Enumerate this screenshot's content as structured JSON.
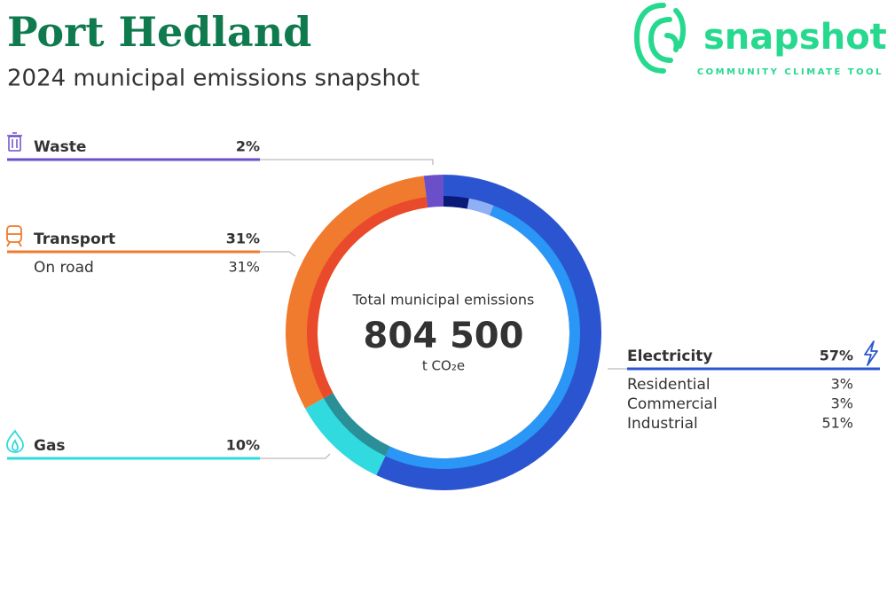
{
  "chart_data": {
    "type": "donut",
    "title": "Port Hedland",
    "subtitle": "2024 municipal emissions snapshot",
    "logo": {
      "name": "snapshot",
      "tagline": "COMMUNITY CLIMATE TOOL"
    },
    "center_label": "Total municipal emissions",
    "total": 804500,
    "total_label": "804 500",
    "unit": "t CO₂e",
    "segments": [
      {
        "name": "Electricity",
        "value": 57,
        "value_label": "57%",
        "color": "#2b55d0",
        "parts": [
          {
            "name": "Residential",
            "value": 3,
            "value_label": "3%",
            "color": "#0b1a78"
          },
          {
            "name": "Commercial",
            "value": 3,
            "value_label": "3%",
            "color": "#8fb0f5"
          },
          {
            "name": "Industrial",
            "value": 51,
            "value_label": "51%",
            "color": "#2a96f5"
          }
        ]
      },
      {
        "name": "Gas",
        "value": 10,
        "value_label": "10%",
        "color": "#30dadf",
        "inner_color": "#2b8f98",
        "parts": []
      },
      {
        "name": "Transport",
        "value": 31,
        "value_label": "31%",
        "color": "#f07a2e",
        "parts": [
          {
            "name": "On road",
            "value": 31,
            "value_label": "31%",
            "color": "#ea4a2c"
          }
        ]
      },
      {
        "name": "Waste",
        "value": 2,
        "value_label": "2%",
        "color": "#6b4fc8",
        "parts": []
      }
    ]
  }
}
